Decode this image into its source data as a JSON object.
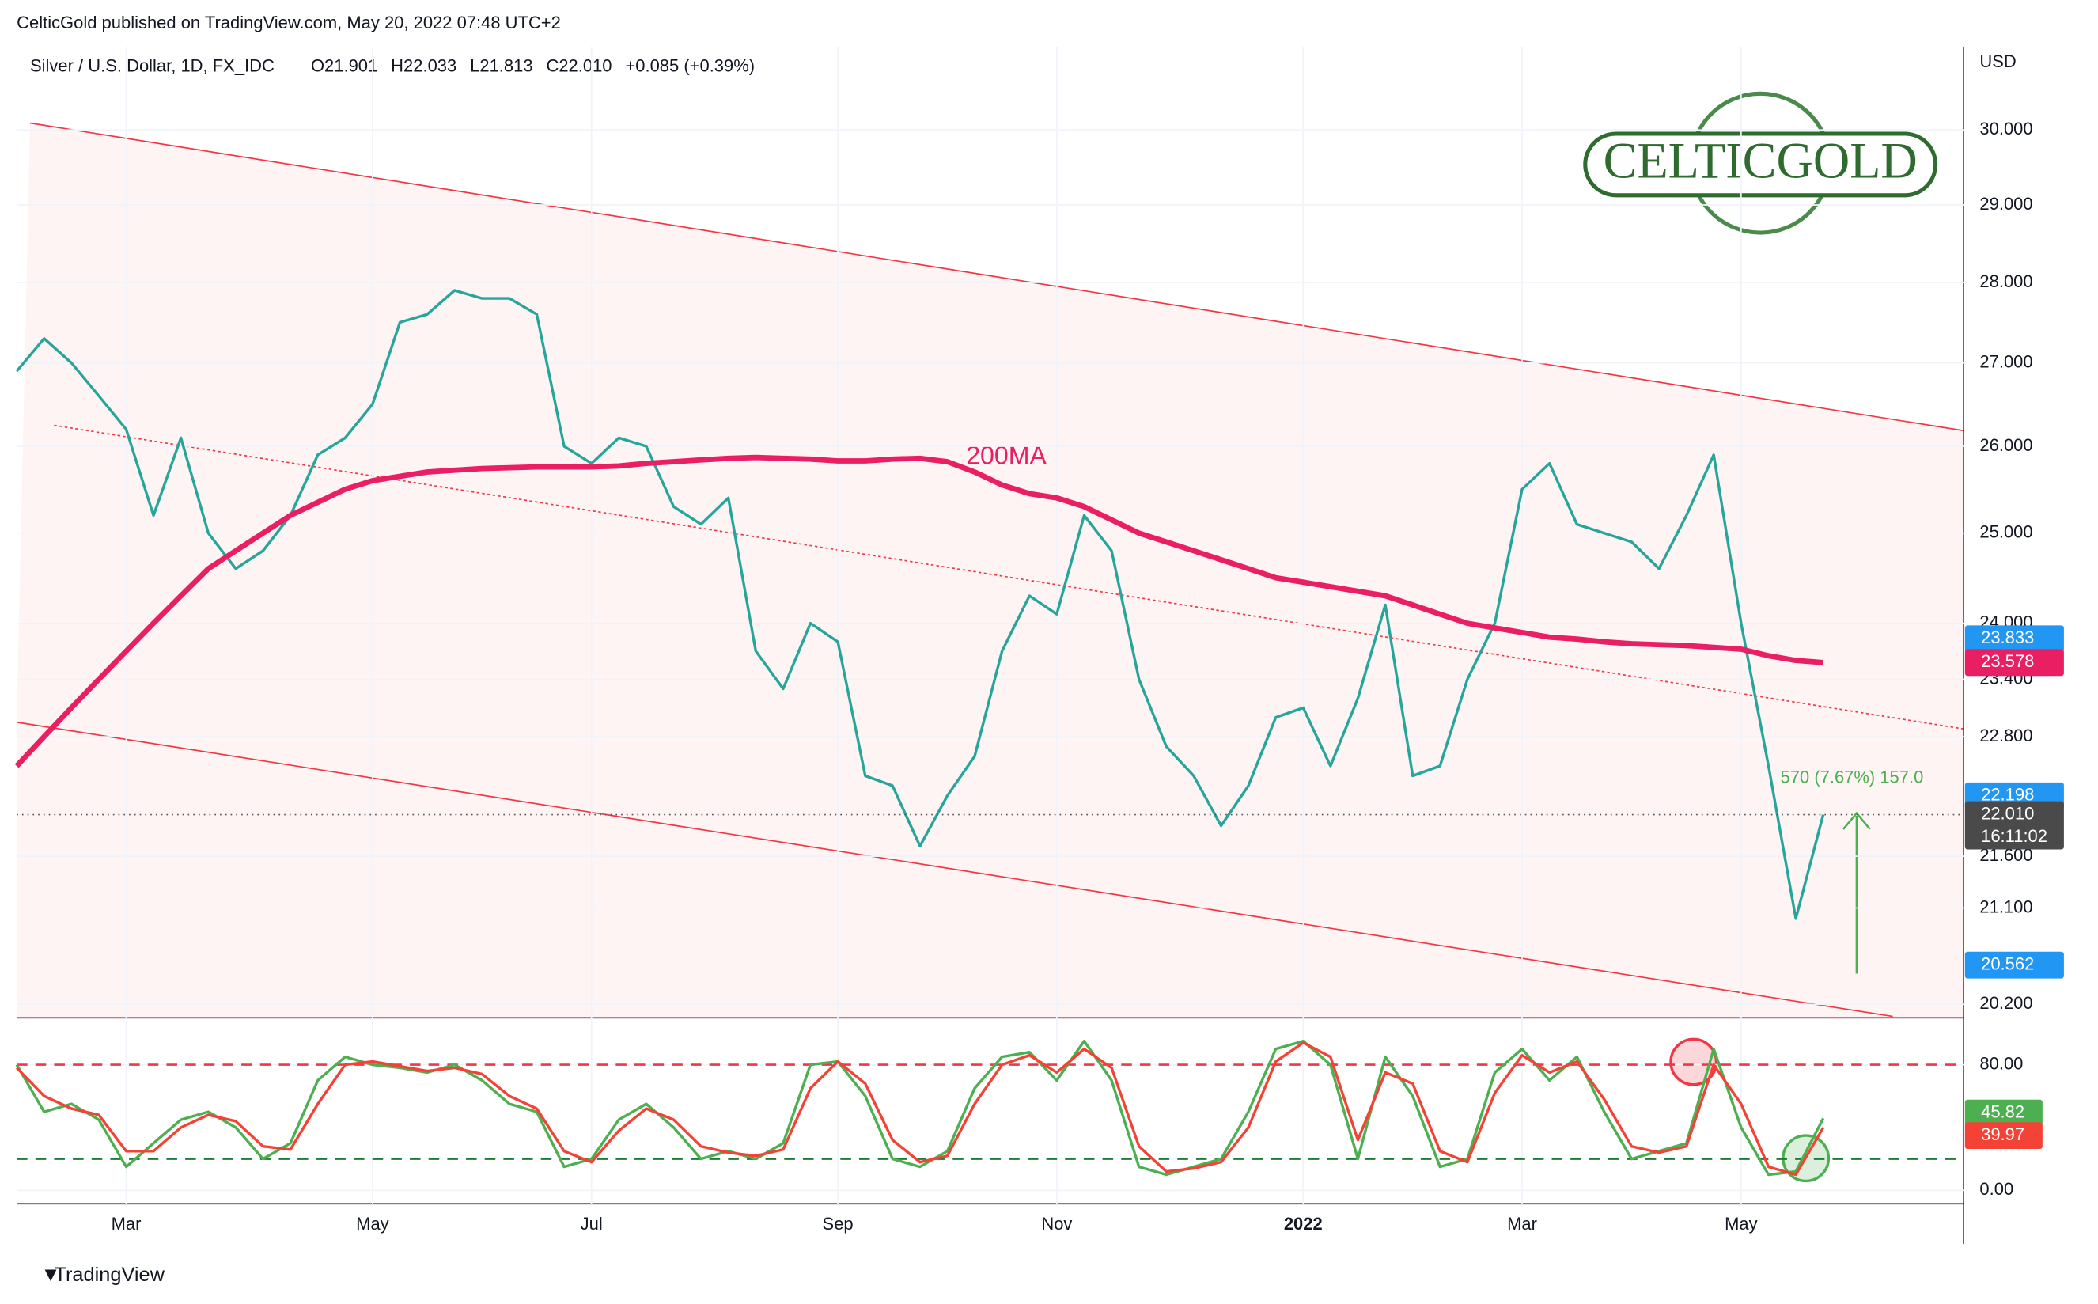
{
  "header": "CelticGold published on TradingView.com, May 20, 2022 07:48 UTC+2",
  "footer": "TradingView",
  "logo": "CELTICGOLD",
  "chart_data": [
    {
      "type": "line",
      "title": "Silver / U.S. Dollar, 1D, FX_IDC",
      "ohlc": [
        "O21.901",
        "H22.033",
        "L21.813",
        "C22.010",
        "+0.085 (+0.39%)"
      ],
      "unit": "USD",
      "categories": [
        null,
        null,
        null,
        null,
        "Mar",
        null,
        null,
        null,
        null,
        null,
        null,
        null,
        null,
        "May",
        null,
        null,
        null,
        null,
        null,
        null,
        null,
        "Jul",
        null,
        null,
        null,
        null,
        null,
        null,
        null,
        null,
        "Sep",
        null,
        null,
        null,
        null,
        null,
        null,
        null,
        "Nov",
        null,
        null,
        null,
        null,
        null,
        null,
        null,
        null,
        "2022",
        null,
        null,
        null,
        null,
        null,
        null,
        null,
        "Mar",
        null,
        null,
        null,
        null,
        null,
        null,
        null,
        "May",
        null,
        null,
        null
      ],
      "series": [
        {
          "color": "#26a69a",
          "values": [
            26.9,
            27.3,
            27.0,
            26.6,
            26.2,
            25.2,
            26.1,
            25.0,
            24.6,
            24.8,
            25.2,
            25.9,
            26.1,
            26.5,
            27.5,
            27.6,
            27.9,
            27.8,
            27.8,
            27.6,
            26.0,
            25.8,
            26.1,
            26.0,
            25.3,
            25.1,
            25.4,
            23.7,
            23.3,
            24.0,
            23.8,
            22.4,
            22.3,
            21.7,
            22.2,
            22.6,
            23.7,
            24.3,
            24.1,
            25.2,
            24.8,
            23.4,
            22.7,
            22.4,
            21.9,
            22.3,
            23.0,
            23.1,
            22.5,
            23.2,
            24.2,
            22.4,
            22.5,
            23.4,
            24.0,
            25.5,
            25.8,
            25.1,
            25.0,
            24.9,
            24.6,
            25.2,
            25.9,
            24.0,
            22.5,
            21.0,
            22.01
          ]
        },
        {
          "name": "200MA",
          "color": "#e91e63",
          "values": [
            22.5,
            22.8,
            23.1,
            23.4,
            23.7,
            24.0,
            24.3,
            24.6,
            24.8,
            25.0,
            25.2,
            25.35,
            25.5,
            25.6,
            25.65,
            25.7,
            25.72,
            25.74,
            25.75,
            25.76,
            25.76,
            25.76,
            25.77,
            25.8,
            25.82,
            25.84,
            25.86,
            25.87,
            25.86,
            25.85,
            25.83,
            25.83,
            25.85,
            25.86,
            25.82,
            25.7,
            25.55,
            25.45,
            25.4,
            25.3,
            25.15,
            25.0,
            24.9,
            24.8,
            24.7,
            24.6,
            24.5,
            24.45,
            24.4,
            24.35,
            24.3,
            24.2,
            24.1,
            24.0,
            23.95,
            23.9,
            23.85,
            23.83,
            23.8,
            23.78,
            23.77,
            23.76,
            23.74,
            23.72,
            23.65,
            23.6,
            23.578
          ]
        }
      ],
      "ylim": [
        20.09,
        31.15
      ],
      "log": true,
      "yticks": [
        {
          "value": 30,
          "label": "30.000"
        },
        {
          "value": 29,
          "label": "29.000"
        },
        {
          "value": 28,
          "label": "28.000"
        },
        {
          "value": 27,
          "label": "27.000"
        },
        {
          "value": 26,
          "label": "26.000"
        },
        {
          "value": 25,
          "label": "25.000"
        },
        {
          "value": 24,
          "label": "24.000"
        },
        {
          "value": 23.4,
          "label": "23.400"
        },
        {
          "value": 22.8,
          "label": "22.800"
        },
        {
          "value": 21.6,
          "label": "21.600"
        },
        {
          "value": 21.1,
          "label": "21.100"
        },
        {
          "value": 20.2,
          "label": "20.200"
        }
      ],
      "price_labels": [
        {
          "value": 23.833,
          "label": "23.833",
          "color": "#2196f3"
        },
        {
          "value": 23.578,
          "label": "23.578",
          "color": "#e91e63"
        },
        {
          "value": 22.198,
          "label": "22.198",
          "color": "#2196f3"
        },
        {
          "value": 22.01,
          "label": "22.010",
          "color": "#4a4a4a"
        },
        {
          "value": 20.562,
          "label": "20.562",
          "color": "#2196f3"
        }
      ],
      "countdown": "16:11:02",
      "measure": "570 (7.67%) 157.0"
    },
    {
      "type": "line",
      "series": [
        {
          "color": "#4caf50",
          "values": [
            80,
            50,
            55,
            45,
            15,
            30,
            45,
            50,
            40,
            20,
            30,
            70,
            85,
            80,
            78,
            75,
            80,
            70,
            55,
            50,
            15,
            20,
            45,
            55,
            40,
            20,
            25,
            20,
            30,
            80,
            82,
            60,
            20,
            15,
            25,
            65,
            85,
            88,
            70,
            95,
            70,
            15,
            10,
            15,
            20,
            50,
            90,
            95,
            80,
            20,
            85,
            60,
            15,
            20,
            75,
            90,
            70,
            85,
            50,
            20,
            25,
            30,
            90,
            40,
            10,
            12,
            45.82
          ]
        },
        {
          "color": "#f44336",
          "values": [
            78,
            60,
            52,
            48,
            25,
            25,
            40,
            48,
            44,
            28,
            26,
            55,
            80,
            82,
            79,
            76,
            78,
            74,
            60,
            52,
            25,
            18,
            38,
            52,
            45,
            28,
            24,
            22,
            26,
            65,
            82,
            68,
            32,
            18,
            22,
            55,
            80,
            86,
            75,
            90,
            78,
            28,
            12,
            14,
            18,
            40,
            82,
            94,
            85,
            32,
            75,
            68,
            25,
            18,
            62,
            86,
            75,
            82,
            58,
            28,
            24,
            28,
            80,
            55,
            15,
            10,
            39.97
          ]
        }
      ],
      "ylim": [
        -8.5,
        109
      ],
      "yticks": [
        {
          "value": 80,
          "label": "80.00"
        },
        {
          "value": 0,
          "label": "0.00"
        }
      ],
      "levels": [
        {
          "value": 80,
          "color": "#f23645"
        },
        {
          "value": 20,
          "color": "#1e7b34"
        }
      ]
    }
  ]
}
